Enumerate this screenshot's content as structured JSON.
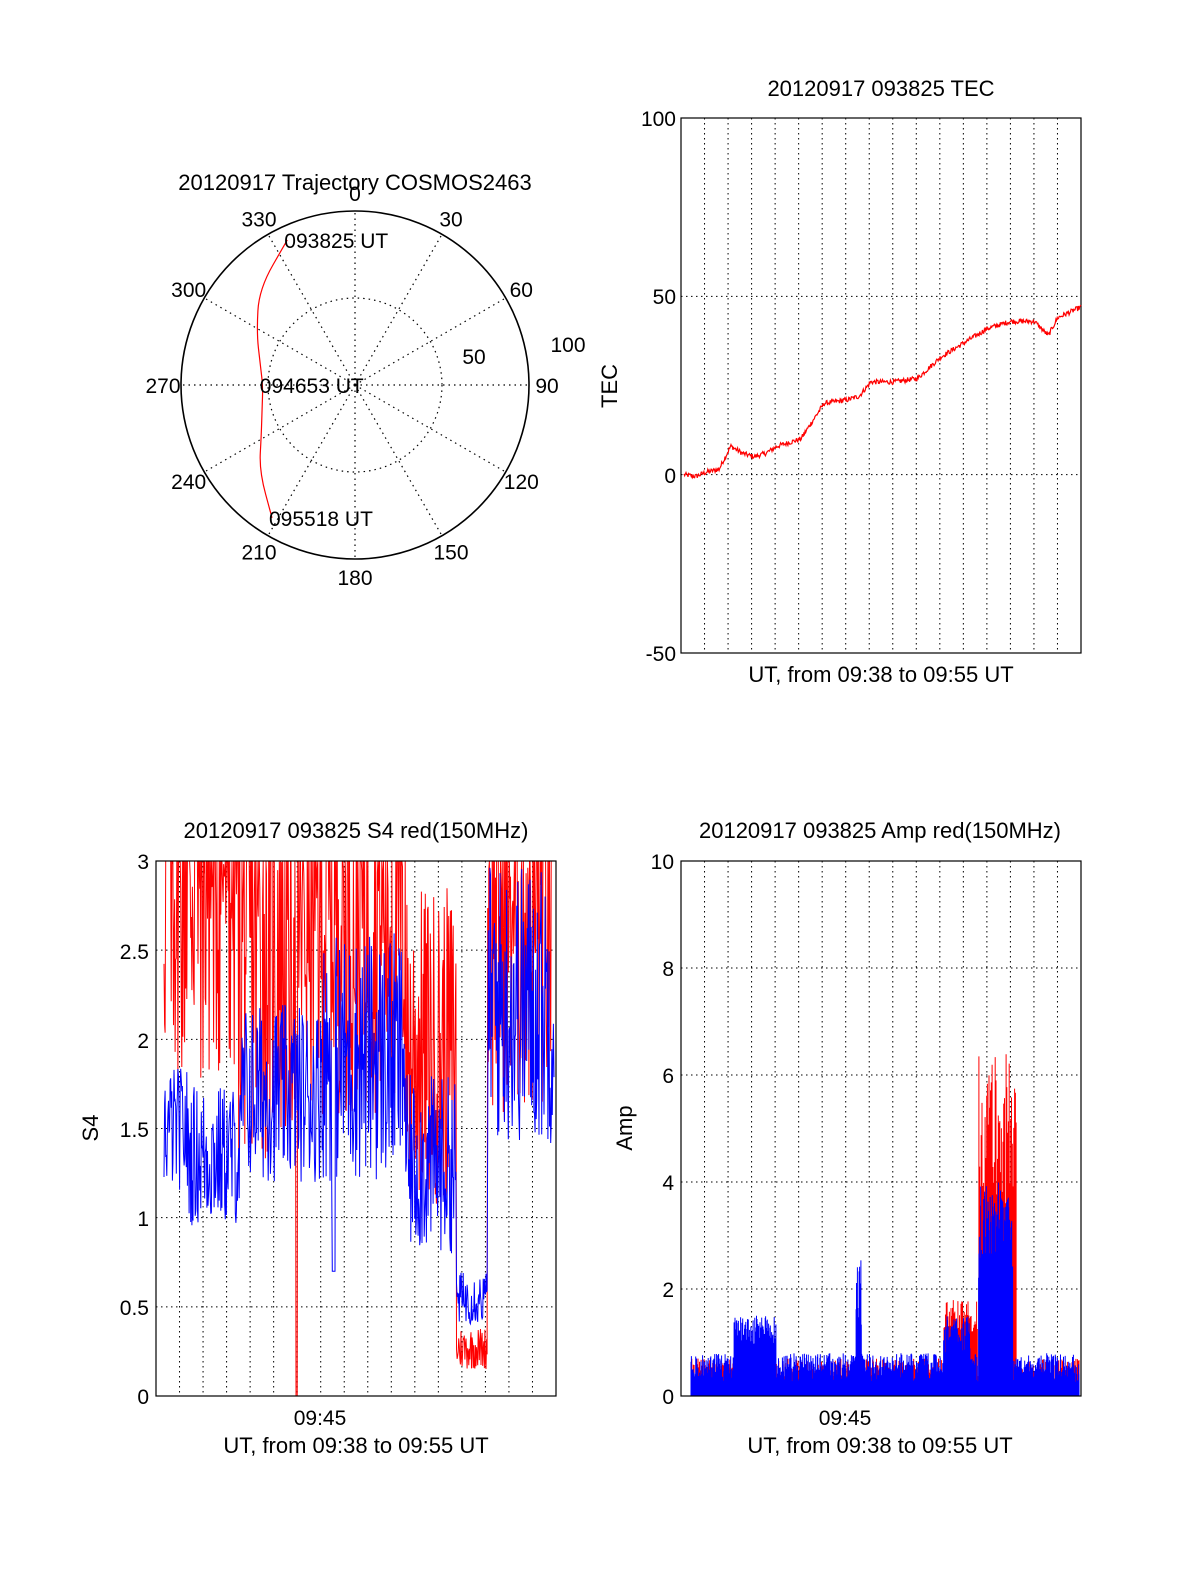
{
  "chart_data": [
    {
      "type": "polar",
      "title": "20120917 Trajectory COSMOS2463",
      "angle_labels": [
        "0",
        "30",
        "60",
        "90",
        "120",
        "150",
        "180",
        "210",
        "240",
        "270",
        "300",
        "330"
      ],
      "radial_labels": [
        "50",
        "100"
      ],
      "radial_ticks": [
        50,
        100
      ],
      "trajectory": [
        {
          "az": 335,
          "zen": 92,
          "label": "093825 UT"
        },
        {
          "az": 315,
          "zen": 78
        },
        {
          "az": 298,
          "zen": 64
        },
        {
          "az": 283,
          "zen": 56
        },
        {
          "az": 270,
          "zen": 53,
          "label": "094653 UT"
        },
        {
          "az": 256,
          "zen": 55
        },
        {
          "az": 242,
          "zen": 61
        },
        {
          "az": 228,
          "zen": 74
        },
        {
          "az": 212,
          "zen": 90,
          "label": "095518 UT"
        }
      ],
      "series_color": "#ff0000"
    },
    {
      "type": "line",
      "title": "20120917 093825 TEC",
      "xlabel": "UT, from 09:38 to 09:55 UT",
      "ylabel": "TEC",
      "ylim": [
        -50,
        100
      ],
      "yticks": [
        "-50",
        "0",
        "50",
        "100"
      ],
      "x_minutes": [
        0,
        17
      ],
      "series_color": "#ff0000",
      "points": [
        [
          0,
          0
        ],
        [
          0.5,
          -0.5
        ],
        [
          1,
          0.8
        ],
        [
          1.5,
          1.5
        ],
        [
          2,
          8
        ],
        [
          2.5,
          6
        ],
        [
          3,
          5
        ],
        [
          3.5,
          6
        ],
        [
          4,
          8
        ],
        [
          5,
          10
        ],
        [
          5.5,
          15
        ],
        [
          6,
          20
        ],
        [
          7,
          21
        ],
        [
          7.5,
          22
        ],
        [
          8,
          26
        ],
        [
          9,
          26
        ],
        [
          10,
          27
        ],
        [
          11,
          33
        ],
        [
          12,
          37
        ],
        [
          13,
          41
        ],
        [
          14,
          43
        ],
        [
          15,
          43
        ],
        [
          15.6,
          39
        ],
        [
          16,
          44
        ],
        [
          17,
          47
        ]
      ]
    },
    {
      "type": "line",
      "title": "20120917 093825 S4 red(150MHz)",
      "xlabel": "UT, from 09:38 to 09:55 UT",
      "ylabel": "S4",
      "xticklabel": "09:45",
      "ylim": [
        0,
        3
      ],
      "yticks": [
        "0",
        "0.5",
        "1",
        "1.5",
        "2",
        "2.5",
        "3"
      ],
      "series": [
        {
          "color": "#ff0000"
        },
        {
          "color": "#0000ff"
        }
      ]
    },
    {
      "type": "line",
      "title": "20120917 093825 Amp red(150MHz)",
      "xlabel": "UT, from 09:38 to 09:55 UT",
      "ylabel": "Amp",
      "xticklabel": "09:45",
      "ylim": [
        0,
        10
      ],
      "yticks": [
        "0",
        "2",
        "4",
        "6",
        "8",
        "10"
      ],
      "series": [
        {
          "color": "#ff0000"
        },
        {
          "color": "#0000ff"
        }
      ]
    }
  ]
}
